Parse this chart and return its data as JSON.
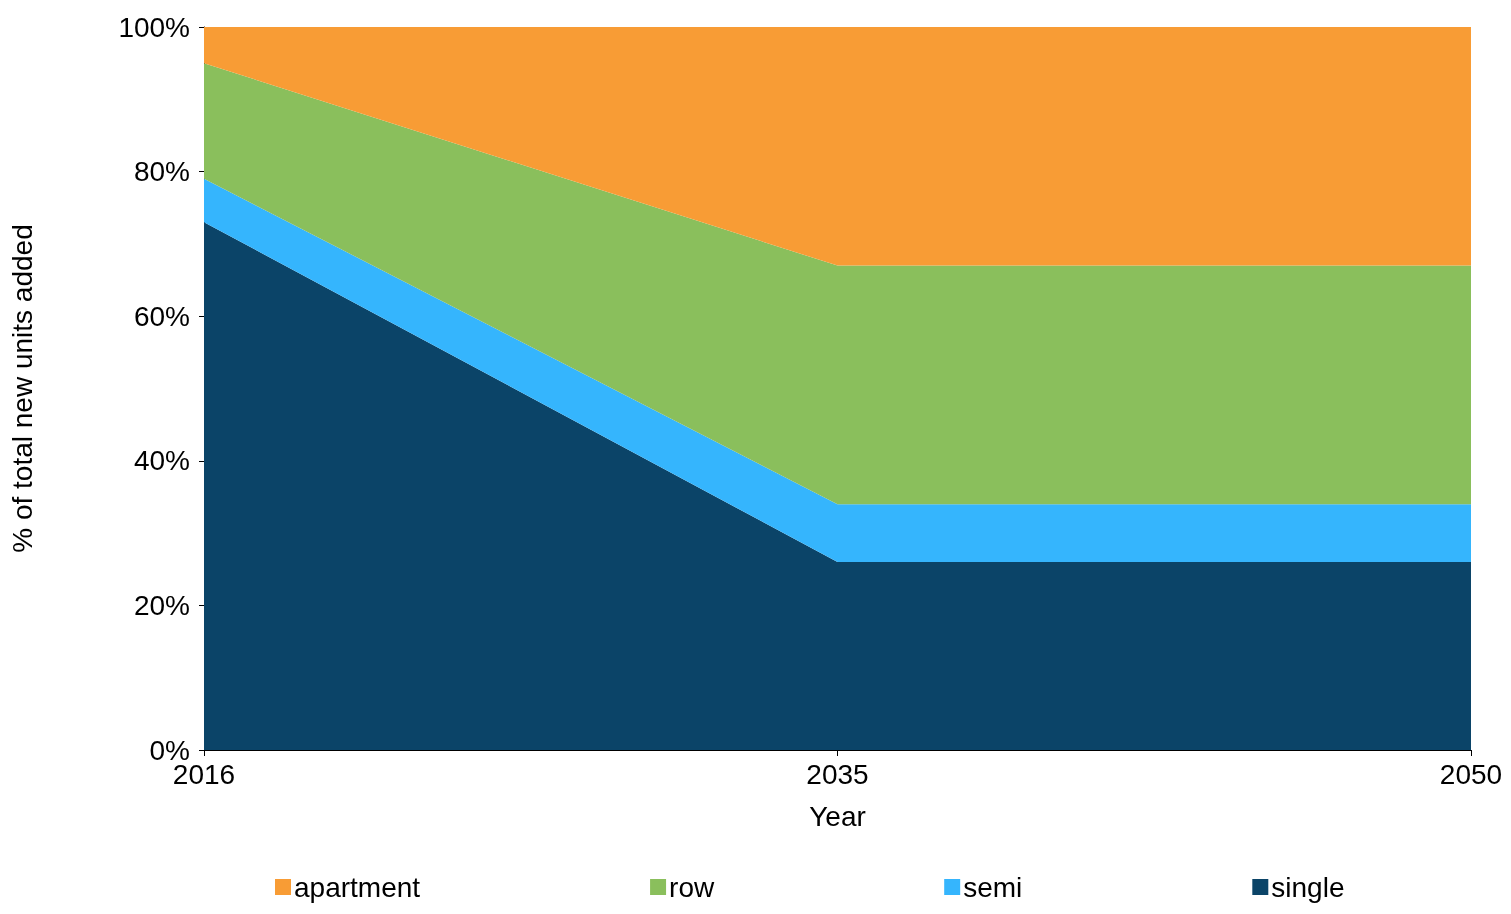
{
  "chart_data": {
    "type": "area",
    "stacked": true,
    "xlabel": "Year",
    "ylabel": "% of total new units added",
    "categories": [
      "2016",
      "2035",
      "2050"
    ],
    "series": [
      {
        "name": "single",
        "color": "#0b4468",
        "values": [
          73,
          26,
          26
        ]
      },
      {
        "name": "semi",
        "color": "#35b5fd",
        "values": [
          6,
          8,
          8
        ]
      },
      {
        "name": "row",
        "color": "#8abf5c",
        "values": [
          16,
          33,
          33
        ]
      },
      {
        "name": "apartment",
        "color": "#f89c35",
        "values": [
          5,
          33,
          33
        ]
      }
    ],
    "ylim": [
      0,
      100
    ],
    "yticks": [
      {
        "value": 0,
        "label": "0%"
      },
      {
        "value": 20,
        "label": "20%"
      },
      {
        "value": 40,
        "label": "40%"
      },
      {
        "value": 60,
        "label": "60%"
      },
      {
        "value": 80,
        "label": "80%"
      },
      {
        "value": 100,
        "label": "100%"
      }
    ],
    "grid": false,
    "legend": "bottom"
  }
}
